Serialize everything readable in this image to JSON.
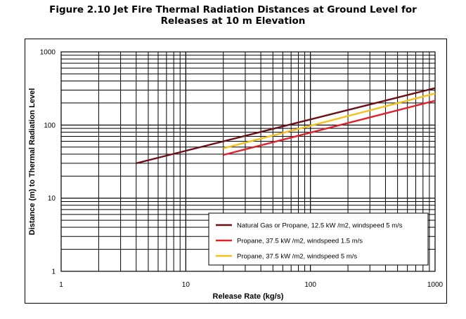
{
  "title_line1": "Figure 2.10 Jet Fire Thermal Radiation Distances at Ground Level for",
  "title_line2": "Releases at 10 m Elevation",
  "chart_data": {
    "type": "line",
    "title": "Figure 2.10 Jet Fire Thermal Radiation Distances at Ground Level for Releases at 10 m Elevation",
    "xlabel": "Release Rate (kg/s)",
    "ylabel": "Distance (m) to Thermal Radiation Level",
    "xscale": "log",
    "yscale": "log",
    "xlim": [
      1,
      1000
    ],
    "ylim": [
      1,
      1000
    ],
    "xticks": [
      "1",
      "10",
      "100",
      "1000"
    ],
    "yticks": [
      "1",
      "10",
      "100",
      "1000"
    ],
    "grid": true,
    "legend_position": "bottom-right",
    "series": [
      {
        "name": "Natural Gas or Propane, 12.5 kW /m2, windspeed 5 m/s",
        "color": "#6b0f17",
        "x": [
          4,
          1000
        ],
        "y": [
          30,
          320
        ]
      },
      {
        "name": "Propane, 37.5 kW /m2, windspeed 1.5 m/s",
        "color": "#e0202a",
        "x": [
          20,
          1000
        ],
        "y": [
          39,
          215
        ]
      },
      {
        "name": "Propane, 37.5 kW /m2, windspeed 5 m/s",
        "color": "#f2c21c",
        "x": [
          20,
          1000
        ],
        "y": [
          48,
          270
        ]
      }
    ]
  }
}
